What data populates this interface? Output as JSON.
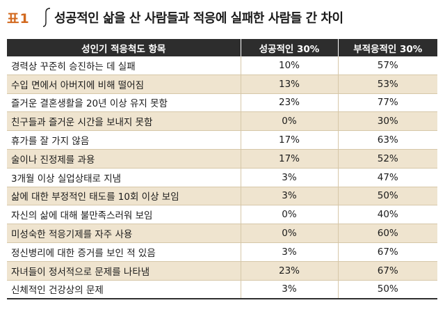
{
  "header": {
    "tag": "표1",
    "title": "성공적인 삶을 산 사람들과 적응에 실패한 사람들 간 차이"
  },
  "table": {
    "columns": [
      "성인기 적응척도 항목",
      "성공적인 30%",
      "부적응적인 30%"
    ],
    "rows": [
      {
        "item": "경력상 꾸준히 승진하는 데 실패",
        "success": "10%",
        "maladaptive": "57%"
      },
      {
        "item": "수입 면에서 아버지에 비해 떨어짐",
        "success": "13%",
        "maladaptive": "53%"
      },
      {
        "item": "즐거운 결혼생활을 20년 이상 유지 못함",
        "success": "23%",
        "maladaptive": "77%"
      },
      {
        "item": "친구들과 즐거운 시간을 보내지 못함",
        "success": "0%",
        "maladaptive": "30%"
      },
      {
        "item": "휴가를 잘 가지 않음",
        "success": "17%",
        "maladaptive": "63%"
      },
      {
        "item": "술이나 진정제를 과용",
        "success": "17%",
        "maladaptive": "52%"
      },
      {
        "item": "3개월 이상 실업상태로 지냄",
        "success": "3%",
        "maladaptive": "47%"
      },
      {
        "item": "삶에 대한 부정적인 태도를 10회 이상 보임",
        "success": "3%",
        "maladaptive": "50%"
      },
      {
        "item": "자신의 삶에 대해 불만족스러워 보임",
        "success": "0%",
        "maladaptive": "40%"
      },
      {
        "item": "미성숙한 적응기제를 자주 사용",
        "success": "0%",
        "maladaptive": "60%"
      },
      {
        "item": "정신병리에 대한 증거를 보인 적 있음",
        "success": "3%",
        "maladaptive": "67%"
      },
      {
        "item": "자녀들이 정서적으로 문제를 나타냄",
        "success": "23%",
        "maladaptive": "67%"
      },
      {
        "item": "신체적인 건강상의 문제",
        "success": "3%",
        "maladaptive": "50%"
      }
    ]
  },
  "colors": {
    "tag": "#d2691e",
    "header_bg": "#2d2d2d",
    "shade_row": "#efe4cf",
    "border": "#d6c7a8"
  }
}
